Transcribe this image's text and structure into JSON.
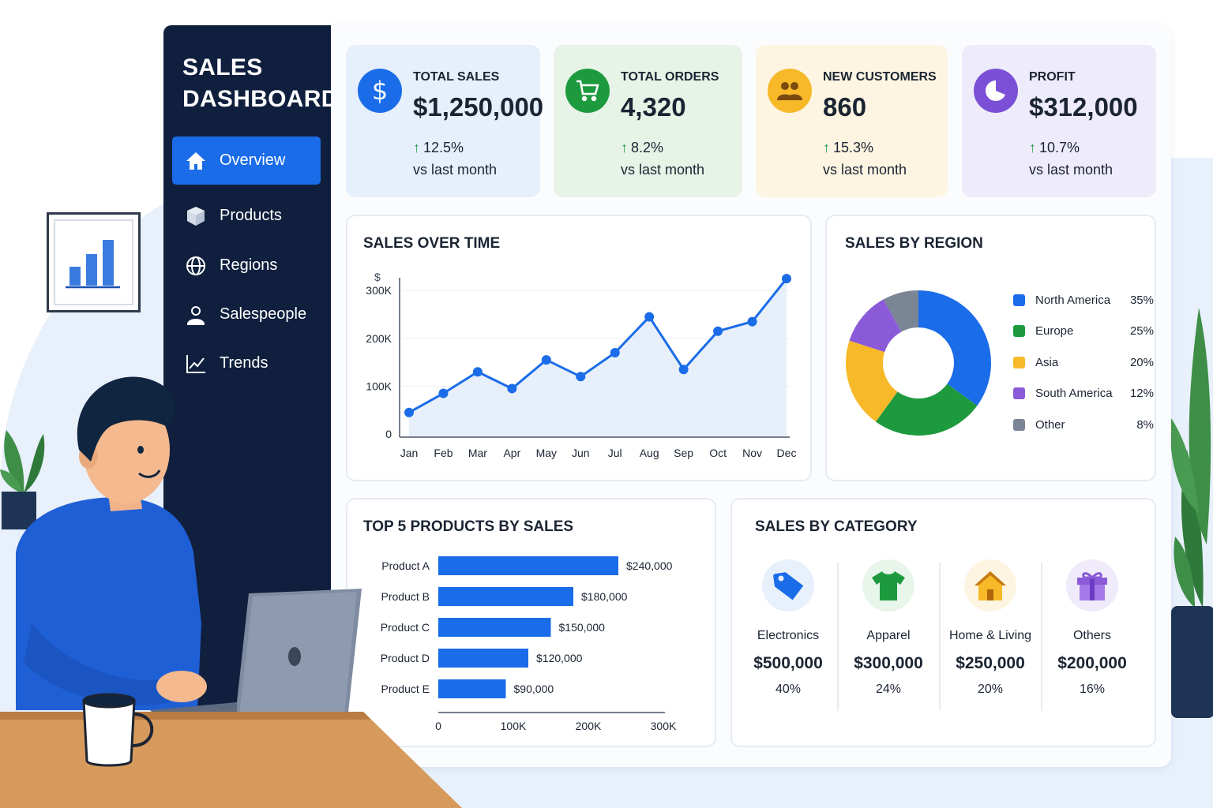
{
  "sidebar": {
    "title": "SALES DASHBOARD",
    "items": [
      {
        "label": "Overview",
        "icon": "home-icon",
        "active": true
      },
      {
        "label": "Products",
        "icon": "box-icon",
        "active": false
      },
      {
        "label": "Regions",
        "icon": "globe-icon",
        "active": false
      },
      {
        "label": "Salespeople",
        "icon": "person-icon",
        "active": false
      },
      {
        "label": "Trends",
        "icon": "trend-icon",
        "active": false
      }
    ]
  },
  "kpis": [
    {
      "title": "TOTAL SALES",
      "value": "$1,250,000",
      "change": "12.5%",
      "sub": "vs last month",
      "icon": "dollar-icon",
      "bg": "#e6f0fc",
      "icon_bg": "#1a6ce8"
    },
    {
      "title": "TOTAL ORDERS",
      "value": "4,320",
      "change": "8.2%",
      "sub": "vs last month",
      "icon": "cart-icon",
      "bg": "#e7f3e6",
      "icon_bg": "#1e9a3e"
    },
    {
      "title": "NEW CUSTOMERS",
      "value": "860",
      "change": "15.3%",
      "sub": "vs last month",
      "icon": "users-icon",
      "bg": "#fdf5e2",
      "icon_bg": "#f7b928"
    },
    {
      "title": "PROFIT",
      "value": "$312,000",
      "change": "10.7%",
      "sub": "vs last month",
      "icon": "pie-icon",
      "bg": "#eeebfa",
      "icon_bg": "#7b4fd6"
    }
  ],
  "sales_over_time": {
    "title": "SALES OVER TIME"
  },
  "sales_by_region": {
    "title": "SALES BY REGION"
  },
  "top_products": {
    "title": "TOP 5 PRODUCTS BY SALES"
  },
  "sales_by_category": {
    "title": "SALES BY CATEGORY",
    "items": [
      {
        "name": "Electronics",
        "value": "$500,000",
        "pct": "40%",
        "icon": "tag-icon",
        "color": "#1a6ce8",
        "bg": "#e8f0fc"
      },
      {
        "name": "Apparel",
        "value": "$300,000",
        "pct": "24%",
        "icon": "shirt-icon",
        "color": "#1e9a3e",
        "bg": "#e8f5ea"
      },
      {
        "name": "Home & Living",
        "value": "$250,000",
        "pct": "20%",
        "icon": "house-icon",
        "color": "#f7b928",
        "bg": "#fdf5e2"
      },
      {
        "name": "Others",
        "value": "$200,000",
        "pct": "16%",
        "icon": "gift-icon",
        "color": "#8a5ad8",
        "bg": "#f0ebfa"
      }
    ]
  },
  "chart_data": [
    {
      "type": "line",
      "title": "SALES OVER TIME",
      "ylabel": "$",
      "categories": [
        "Jan",
        "Feb",
        "Mar",
        "Apr",
        "May",
        "Jun",
        "Jul",
        "Aug",
        "Sep",
        "Oct",
        "Nov",
        "Dec"
      ],
      "values": [
        45000,
        85000,
        130000,
        95000,
        155000,
        120000,
        170000,
        245000,
        135000,
        215000,
        235000,
        325000
      ],
      "yticks": [
        "0",
        "100K",
        "200K",
        "300K"
      ],
      "ylim": [
        0,
        340000
      ],
      "color": "#1a6ce8",
      "grid": true
    },
    {
      "type": "pie",
      "title": "SALES BY REGION",
      "slices": [
        {
          "label": "North America",
          "value": 35,
          "display": "35%",
          "color": "#1a6ce8"
        },
        {
          "label": "Europe",
          "value": 25,
          "display": "25%",
          "color": "#1e9a3e"
        },
        {
          "label": "Asia",
          "value": 20,
          "display": "20%",
          "color": "#f7b928"
        },
        {
          "label": "South America",
          "value": 12,
          "display": "12%",
          "color": "#8a5ad8"
        },
        {
          "label": "Other",
          "value": 8,
          "display": "8%",
          "color": "#7a8595"
        }
      ],
      "legend": "right"
    },
    {
      "type": "bar",
      "orientation": "horizontal",
      "title": "TOP 5 PRODUCTS BY SALES",
      "categories": [
        "Product A",
        "Product B",
        "Product C",
        "Product D",
        "Product E"
      ],
      "values": [
        240000,
        180000,
        150000,
        120000,
        90000
      ],
      "labels": [
        "$240,000",
        "$180,000",
        "$150,000",
        "$120,000",
        "$90,000"
      ],
      "xticks": [
        "0",
        "100K",
        "200K",
        "300K"
      ],
      "xlim": [
        0,
        300000
      ],
      "color": "#1a6ce8"
    }
  ]
}
